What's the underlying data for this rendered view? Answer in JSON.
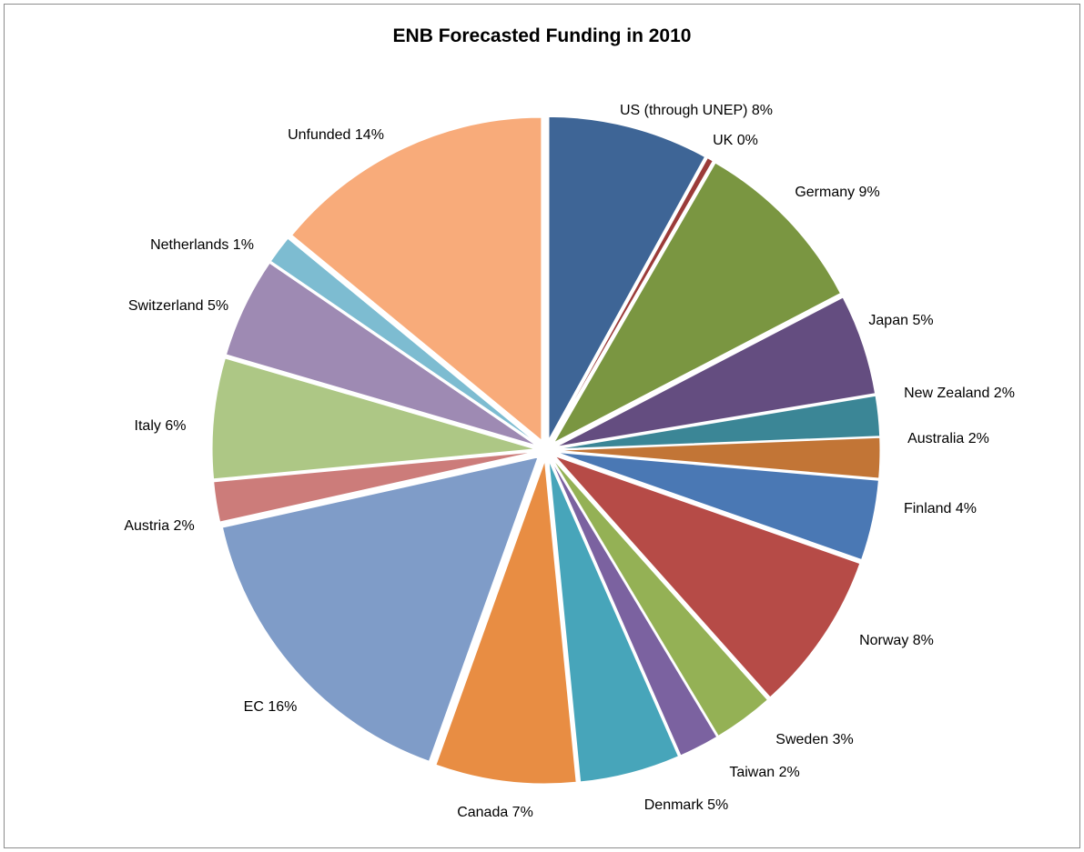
{
  "chart_data": {
    "type": "pie",
    "title": "ENB Forecasted Funding in 2010",
    "exploded": true,
    "legend": "none",
    "slices": [
      {
        "name": "US (through UNEP)",
        "value": 8,
        "label": "US (through UNEP) 8%",
        "color": "#3E6596"
      },
      {
        "name": "UK",
        "value": 0.3,
        "label": "UK 0%",
        "color": "#9B3B39"
      },
      {
        "name": "Germany",
        "value": 9,
        "label": "Germany 9%",
        "color": "#7A9641"
      },
      {
        "name": "Japan",
        "value": 5,
        "label": "Japan 5%",
        "color": "#644D80"
      },
      {
        "name": "New Zealand",
        "value": 2,
        "label": "New Zealand 2%",
        "color": "#3B8696"
      },
      {
        "name": "Australia",
        "value": 2,
        "label": "Australia 2%",
        "color": "#C27536"
      },
      {
        "name": "Finland",
        "value": 4,
        "label": "Finland 4%",
        "color": "#4A78B4"
      },
      {
        "name": "Norway",
        "value": 8,
        "label": "Norway 8%",
        "color": "#B64B47"
      },
      {
        "name": "Sweden",
        "value": 3,
        "label": "Sweden 3%",
        "color": "#94B155"
      },
      {
        "name": "Taiwan",
        "value": 2,
        "label": "Taiwan 2%",
        "color": "#7B62A0"
      },
      {
        "name": "Denmark",
        "value": 5,
        "label": "Denmark 5%",
        "color": "#47A5BA"
      },
      {
        "name": "Canada",
        "value": 7,
        "label": "Canada 7%",
        "color": "#E88D43"
      },
      {
        "name": "EC",
        "value": 16,
        "label": "EC 16%",
        "color": "#7F9CC8"
      },
      {
        "name": "Austria",
        "value": 2,
        "label": "Austria 2%",
        "color": "#CC7C7A"
      },
      {
        "name": "Italy",
        "value": 6,
        "label": "Italy 6%",
        "color": "#ADC785"
      },
      {
        "name": "Switzerland",
        "value": 5,
        "label": "Switzerland 5%",
        "color": "#9E8AB3"
      },
      {
        "name": "Netherlands",
        "value": 1.4,
        "label": "Netherlands 1%",
        "color": "#7DBCD1"
      },
      {
        "name": "Unfunded",
        "value": 14,
        "label": "Unfunded 14%",
        "color": "#F8AB7A"
      }
    ]
  }
}
